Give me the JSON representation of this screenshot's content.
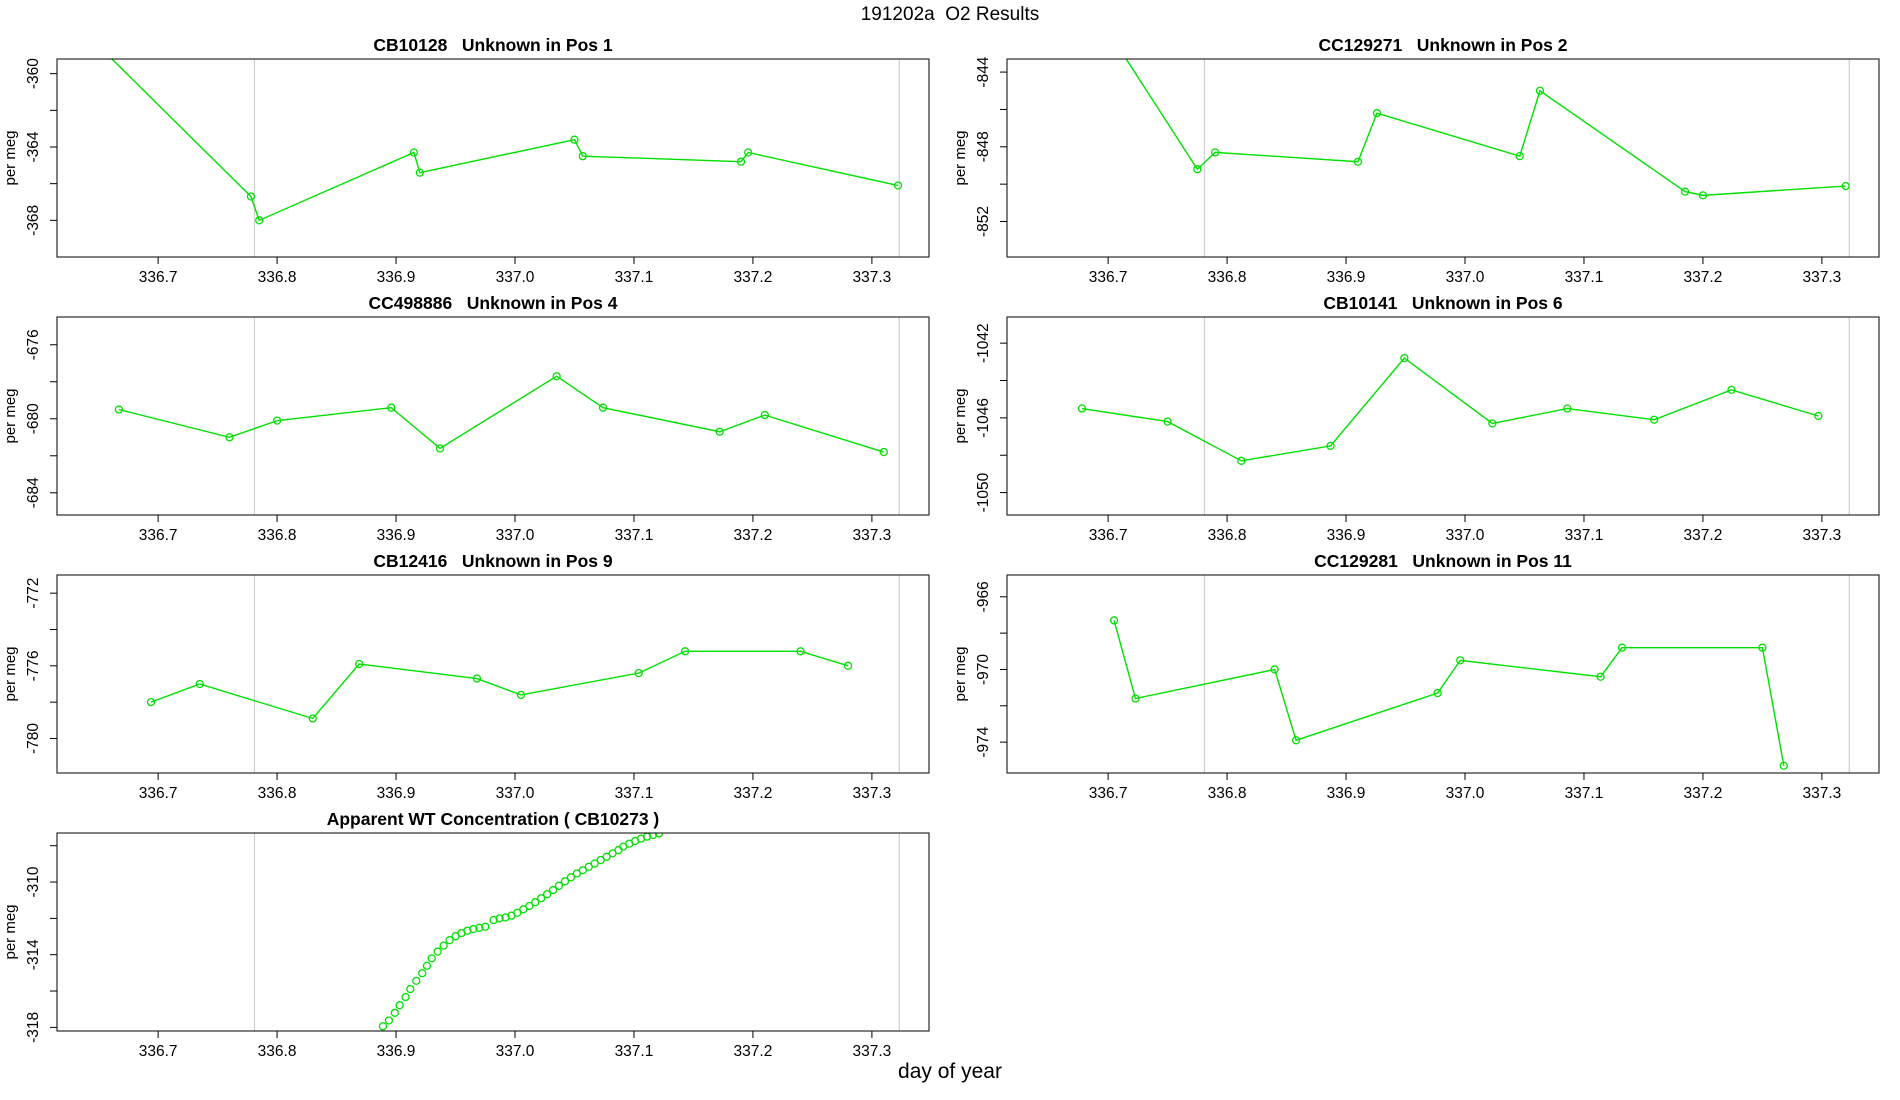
{
  "header": {
    "title": "191202a  O2 Results"
  },
  "footer": {
    "xlabel": "day of year"
  },
  "colors": {
    "series": "#00e000",
    "vline": "#cfcfcf",
    "axis": "#000000",
    "text": "#000000"
  },
  "x_axis": {
    "lim": [
      336.615,
      337.348
    ],
    "ticks": [
      336.7,
      336.8,
      336.9,
      337.0,
      337.1,
      337.2,
      337.3
    ],
    "tick_labels": [
      "336.7",
      "336.8",
      "336.9",
      "337.0",
      "337.1",
      "337.2",
      "337.3"
    ],
    "vlines": [
      336.781,
      337.323
    ]
  },
  "chart_data": [
    {
      "type": "line",
      "title": "CB10128   Unknown in Pos 1",
      "ylabel": "per meg",
      "ylim": [
        -359.2,
        -370.0
      ],
      "yticks": [
        -360,
        -362,
        -364,
        -366,
        -368
      ],
      "ytick_labels": [
        "-360",
        "",
        "-364",
        "",
        "-368"
      ],
      "draw_line": true,
      "points": [
        [
          336.63,
          -357.2
        ],
        [
          336.778,
          -366.7
        ],
        [
          336.785,
          -368.0
        ],
        [
          336.915,
          -364.3
        ],
        [
          336.92,
          -365.4
        ],
        [
          337.05,
          -363.6
        ],
        [
          337.057,
          -364.5
        ],
        [
          337.19,
          -364.8
        ],
        [
          337.196,
          -364.3
        ],
        [
          337.322,
          -366.1
        ]
      ]
    },
    {
      "type": "line",
      "title": "CC129271   Unknown in Pos 2",
      "ylabel": "per meg",
      "ylim": [
        -843.3,
        -853.9
      ],
      "yticks": [
        -844,
        -846,
        -848,
        -850,
        -852
      ],
      "ytick_labels": [
        "-844",
        "",
        "-848",
        "",
        "-852"
      ],
      "draw_line": true,
      "points": [
        [
          336.7,
          -841.8
        ],
        [
          336.775,
          -849.2
        ],
        [
          336.79,
          -848.3
        ],
        [
          336.91,
          -848.8
        ],
        [
          336.926,
          -846.2
        ],
        [
          337.046,
          -848.5
        ],
        [
          337.063,
          -845.0
        ],
        [
          337.185,
          -850.4
        ],
        [
          337.2,
          -850.6
        ],
        [
          337.32,
          -850.1
        ]
      ]
    },
    {
      "type": "line",
      "title": "CC498886   Unknown in Pos 4",
      "ylabel": "per meg",
      "ylim": [
        -674.5,
        -685.2
      ],
      "yticks": [
        -676,
        -678,
        -680,
        -682,
        -684
      ],
      "ytick_labels": [
        "-676",
        "",
        "-680",
        "",
        "-684"
      ],
      "draw_line": true,
      "points": [
        [
          336.667,
          -679.5
        ],
        [
          336.76,
          -681.0
        ],
        [
          336.8,
          -680.1
        ],
        [
          336.896,
          -679.4
        ],
        [
          336.937,
          -681.6
        ],
        [
          337.035,
          -677.7
        ],
        [
          337.074,
          -679.4
        ],
        [
          337.172,
          -680.7
        ],
        [
          337.21,
          -679.8
        ],
        [
          337.31,
          -681.8
        ]
      ]
    },
    {
      "type": "line",
      "title": "CB10141   Unknown in Pos 6",
      "ylabel": "per meg",
      "ylim": [
        -1040.6,
        -1051.2
      ],
      "yticks": [
        -1042,
        -1044,
        -1046,
        -1048,
        -1050
      ],
      "ytick_labels": [
        "-1042",
        "",
        "-1046",
        "",
        "-1050"
      ],
      "draw_line": true,
      "points": [
        [
          336.678,
          -1045.5
        ],
        [
          336.75,
          -1046.2
        ],
        [
          336.812,
          -1048.3
        ],
        [
          336.887,
          -1047.5
        ],
        [
          336.949,
          -1042.8
        ],
        [
          337.023,
          -1046.3
        ],
        [
          337.086,
          -1045.5
        ],
        [
          337.159,
          -1046.1
        ],
        [
          337.224,
          -1044.5
        ],
        [
          337.297,
          -1045.9
        ]
      ]
    },
    {
      "type": "line",
      "title": "CB12416   Unknown in Pos 9",
      "ylabel": "per meg",
      "ylim": [
        -771.0,
        -781.9
      ],
      "yticks": [
        -772,
        -774,
        -776,
        -778,
        -780
      ],
      "ytick_labels": [
        "-772",
        "",
        "-776",
        "",
        "-780"
      ],
      "draw_line": true,
      "points": [
        [
          336.694,
          -778.0
        ],
        [
          336.735,
          -777.0
        ],
        [
          336.83,
          -778.9
        ],
        [
          336.869,
          -775.9
        ],
        [
          336.968,
          -776.7
        ],
        [
          337.005,
          -777.6
        ],
        [
          337.104,
          -776.4
        ],
        [
          337.143,
          -775.2
        ],
        [
          337.24,
          -775.2
        ],
        [
          337.28,
          -776.0
        ]
      ]
    },
    {
      "type": "line",
      "title": "CC129281   Unknown in Pos 11",
      "ylabel": "per meg",
      "ylim": [
        -964.8,
        -975.7
      ],
      "yticks": [
        -966,
        -968,
        -970,
        -972,
        -974
      ],
      "ytick_labels": [
        "-966",
        "",
        "-970",
        "",
        "-974"
      ],
      "draw_line": true,
      "points": [
        [
          336.705,
          -967.3
        ],
        [
          336.723,
          -971.6
        ],
        [
          336.84,
          -970.0
        ],
        [
          336.858,
          -973.9
        ],
        [
          336.977,
          -971.3
        ],
        [
          336.996,
          -969.5
        ],
        [
          337.114,
          -970.4
        ],
        [
          337.132,
          -968.8
        ],
        [
          337.25,
          -968.8
        ],
        [
          337.268,
          -975.3
        ]
      ]
    },
    {
      "type": "scatter",
      "title": "Apparent WT Concentration ( CB10273 )",
      "ylabel": "per meg",
      "ylim": [
        -307.3,
        -318.2
      ],
      "yticks": [
        -308,
        -310,
        -312,
        -314,
        -316,
        -318
      ],
      "ytick_labels": [
        "",
        "-310",
        "",
        "-314",
        "",
        "-318"
      ],
      "draw_line": false,
      "points": [
        [
          336.889,
          -317.94
        ],
        [
          336.894,
          -317.62
        ],
        [
          336.899,
          -317.2
        ],
        [
          336.903,
          -316.78
        ],
        [
          336.908,
          -316.33
        ],
        [
          336.912,
          -315.89
        ],
        [
          336.917,
          -315.44
        ],
        [
          336.922,
          -315.02
        ],
        [
          336.926,
          -314.61
        ],
        [
          336.93,
          -314.2
        ],
        [
          336.935,
          -313.83
        ],
        [
          336.94,
          -313.5
        ],
        [
          336.945,
          -313.2
        ],
        [
          336.95,
          -312.98
        ],
        [
          336.955,
          -312.81
        ],
        [
          336.96,
          -312.68
        ],
        [
          336.965,
          -312.59
        ],
        [
          336.97,
          -312.52
        ],
        [
          336.975,
          -312.46
        ],
        [
          336.982,
          -312.09
        ],
        [
          336.987,
          -312.0
        ],
        [
          336.992,
          -311.95
        ],
        [
          336.997,
          -311.85
        ],
        [
          337.002,
          -311.69
        ],
        [
          337.007,
          -311.5
        ],
        [
          337.012,
          -311.32
        ],
        [
          337.017,
          -311.11
        ],
        [
          337.022,
          -310.89
        ],
        [
          337.027,
          -310.67
        ],
        [
          337.032,
          -310.44
        ],
        [
          337.037,
          -310.2
        ],
        [
          337.042,
          -309.96
        ],
        [
          337.047,
          -309.74
        ],
        [
          337.052,
          -309.53
        ],
        [
          337.057,
          -309.35
        ],
        [
          337.062,
          -309.16
        ],
        [
          337.067,
          -308.98
        ],
        [
          337.072,
          -308.79
        ],
        [
          337.077,
          -308.61
        ],
        [
          337.082,
          -308.42
        ],
        [
          337.087,
          -308.24
        ],
        [
          337.091,
          -308.05
        ],
        [
          337.096,
          -307.89
        ],
        [
          337.101,
          -307.74
        ],
        [
          337.106,
          -307.61
        ],
        [
          337.111,
          -307.5
        ],
        [
          337.116,
          -307.41
        ],
        [
          337.121,
          -307.33
        ]
      ]
    }
  ]
}
